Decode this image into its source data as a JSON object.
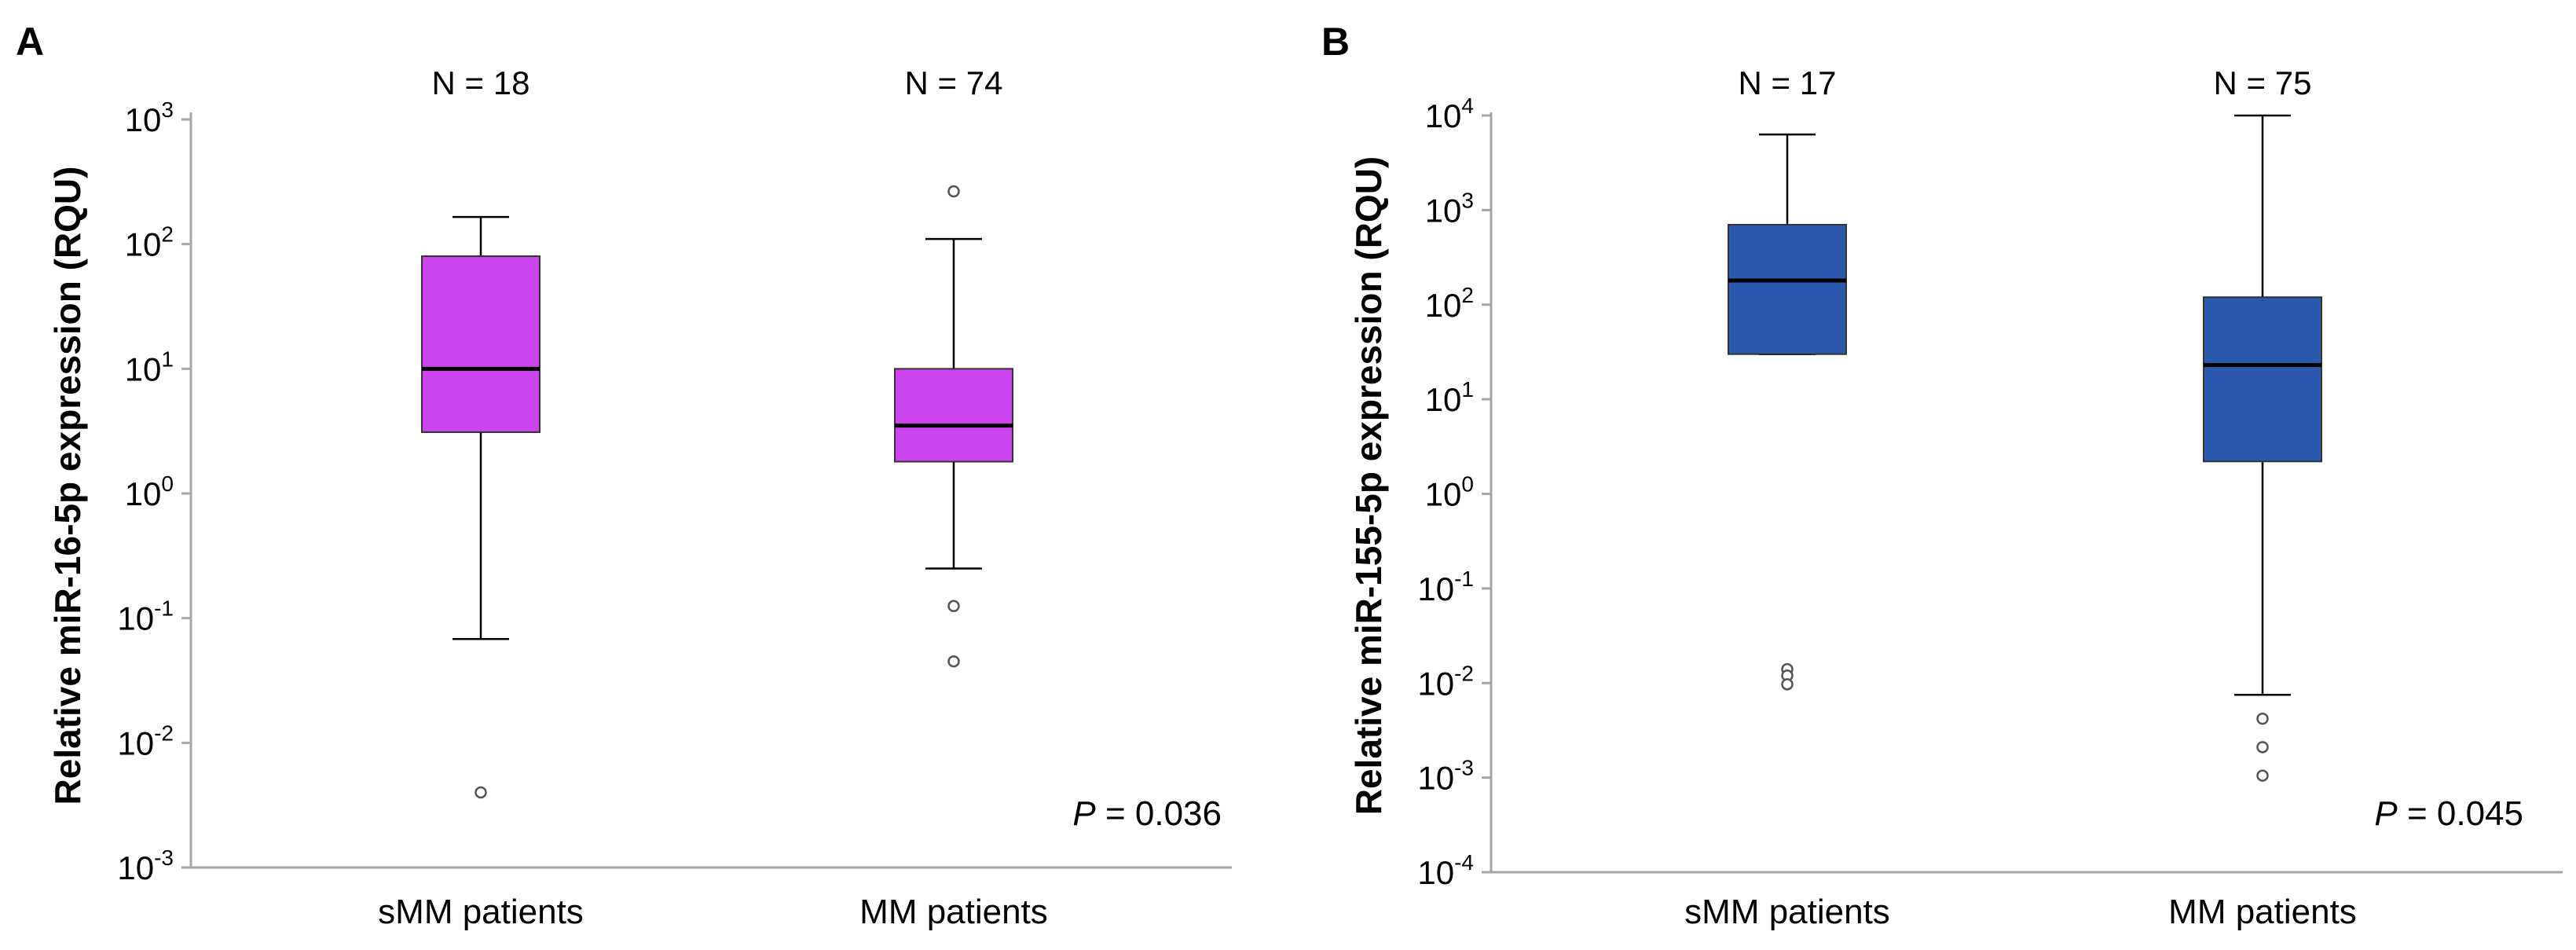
{
  "chart_data": [
    {
      "panel": "A",
      "type": "box",
      "ylabel": "Relative miR-16-5p expression (RQU)",
      "yscale": "log10",
      "ylim_exp": [
        -3,
        3
      ],
      "yticks": [
        {
          "base": "10",
          "exp": "-3"
        },
        {
          "base": "10",
          "exp": "-2"
        },
        {
          "base": "10",
          "exp": "-1"
        },
        {
          "base": "10",
          "exp": "0"
        },
        {
          "base": "10",
          "exp": "1"
        },
        {
          "base": "10",
          "exp": "2"
        },
        {
          "base": "10",
          "exp": "3"
        }
      ],
      "categories": [
        "sMM patients",
        "MM patients"
      ],
      "n_labels": [
        "N = 18",
        "N = 74"
      ],
      "p_value": {
        "symbol": "P",
        "text": " = 0.036"
      },
      "color": "#cc44ee",
      "boxes": [
        {
          "whisker_low": 0.068,
          "q1": 3.1,
          "median": 10,
          "q3": 80,
          "whisker_high": 165,
          "outliers": [
            0.004
          ]
        },
        {
          "whisker_low": 0.25,
          "q1": 1.8,
          "median": 3.5,
          "q3": 10,
          "whisker_high": 110,
          "outliers": [
            265,
            0.125,
            0.045
          ]
        }
      ]
    },
    {
      "panel": "B",
      "type": "box",
      "ylabel": "Relative miR-155-5p expression (RQU)",
      "yscale": "log10",
      "ylim_exp": [
        -4,
        4
      ],
      "yticks": [
        {
          "base": "10",
          "exp": "-4"
        },
        {
          "base": "10",
          "exp": "-3"
        },
        {
          "base": "10",
          "exp": "-2"
        },
        {
          "base": "10",
          "exp": "-1"
        },
        {
          "base": "10",
          "exp": "0"
        },
        {
          "base": "10",
          "exp": "1"
        },
        {
          "base": "10",
          "exp": "2"
        },
        {
          "base": "10",
          "exp": "3"
        },
        {
          "base": "10",
          "exp": "4"
        }
      ],
      "categories": [
        "sMM patients",
        "MM patients"
      ],
      "n_labels": [
        "N = 17",
        "N = 75"
      ],
      "p_value": {
        "symbol": "P",
        "text": " = 0.045"
      },
      "color": "#2b59b0",
      "boxes": [
        {
          "whisker_low": 30,
          "q1": 30,
          "median": 180,
          "q3": 700,
          "whisker_high": 6300,
          "outliers": [
            0.014,
            0.012,
            0.0097
          ]
        },
        {
          "whisker_low": 0.0075,
          "q1": 2.2,
          "median": 23,
          "q3": 120,
          "whisker_high": 10000,
          "outliers": [
            0.0042,
            0.0021,
            0.00105
          ]
        }
      ]
    }
  ]
}
